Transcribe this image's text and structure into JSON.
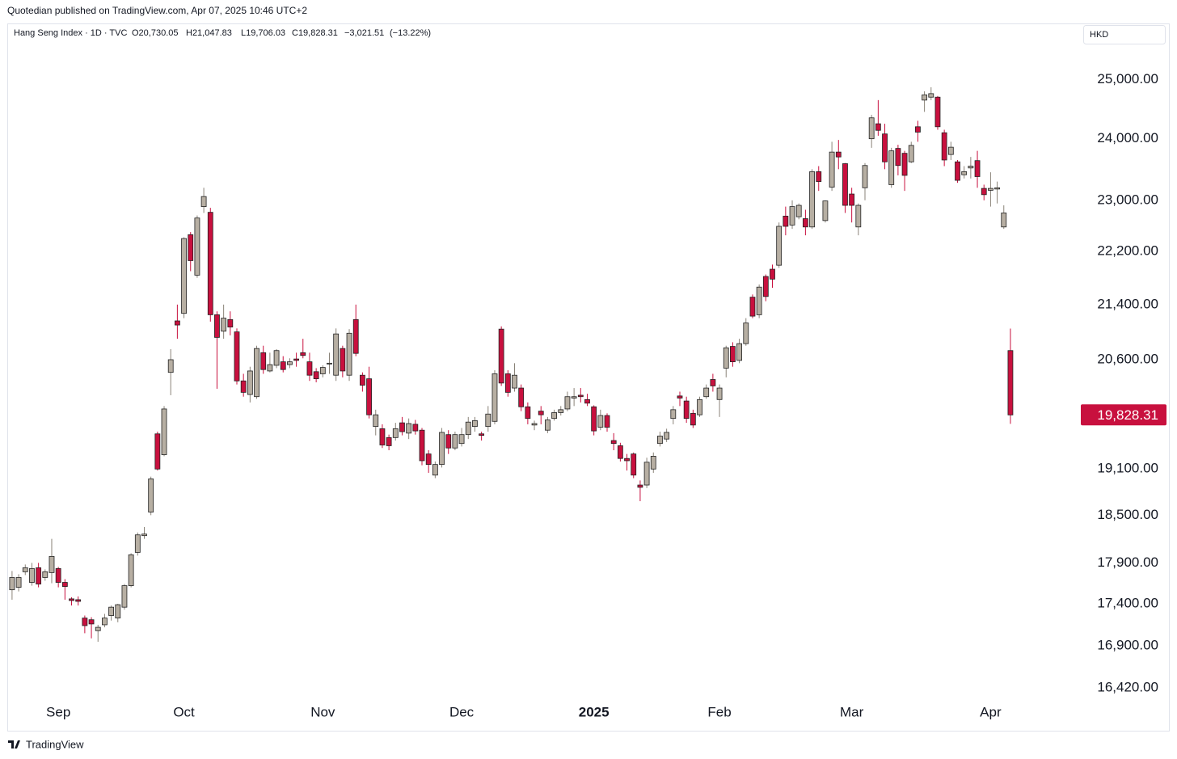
{
  "header": "Quotedian published on TradingView.com, Apr 07, 2025 10:46 UTC+2",
  "footer": "TradingView",
  "chart_data": {
    "type": "candlestick",
    "legend": {
      "symbol": "Hang Seng Index · 1D · TVC",
      "open": "O20,730.05",
      "high": "H21,047.83",
      "low": "L19,706.03",
      "close": "C19,828.31",
      "change": "−3,021.51",
      "change_pct": "(−13.22%)"
    },
    "currency": "HKD",
    "log_scale": true,
    "up_color": "#b7afa3",
    "down_color": "#c8103e",
    "border_color": "#222222",
    "ylim": [
      16290,
      26050
    ],
    "yticks": [
      {
        "value": 16420,
        "label": "16,420.00"
      },
      {
        "value": 16900,
        "label": "16,900.00"
      },
      {
        "value": 17400,
        "label": "17,400.00"
      },
      {
        "value": 17900,
        "label": "17,900.00"
      },
      {
        "value": 18500,
        "label": "18,500.00"
      },
      {
        "value": 19100,
        "label": "19,100.00"
      },
      {
        "value": 20600,
        "label": "20,600.00"
      },
      {
        "value": 21400,
        "label": "21,400.00"
      },
      {
        "value": 22200,
        "label": "22,200.00"
      },
      {
        "value": 23000,
        "label": "23,000.00"
      },
      {
        "value": 24000,
        "label": "24,000.00"
      },
      {
        "value": 25000,
        "label": "25,000.00"
      }
    ],
    "last_price": {
      "value": 19828.31,
      "label": "19,828.31"
    },
    "xlim": [
      -0.6,
      161.4
    ],
    "xticks": [
      {
        "value": 7,
        "label": "Sep"
      },
      {
        "value": 26,
        "label": "Oct"
      },
      {
        "value": 47,
        "label": "Nov"
      },
      {
        "value": 68,
        "label": "Dec"
      },
      {
        "value": 88,
        "label": "2025"
      },
      {
        "value": 107,
        "label": "Feb"
      },
      {
        "value": 127,
        "label": "Mar"
      },
      {
        "value": 148,
        "label": "Apr"
      }
    ],
    "ohlc": [
      [
        17570,
        17800,
        17450,
        17720
      ],
      [
        17600,
        17760,
        17550,
        17720
      ],
      [
        17790,
        17880,
        17750,
        17840
      ],
      [
        17660,
        17900,
        17620,
        17830
      ],
      [
        17840,
        17900,
        17600,
        17640
      ],
      [
        17720,
        17820,
        17680,
        17790
      ],
      [
        17780,
        18200,
        17650,
        17980
      ],
      [
        17830,
        17850,
        17600,
        17660
      ],
      [
        17660,
        17700,
        17450,
        17610
      ],
      [
        17460,
        17480,
        17380,
        17440
      ],
      [
        17450,
        17490,
        17380,
        17430
      ],
      [
        17230,
        17260,
        17050,
        17140
      ],
      [
        17210,
        17240,
        16990,
        17160
      ],
      [
        17080,
        17150,
        16950,
        17120
      ],
      [
        17150,
        17280,
        17120,
        17230
      ],
      [
        17260,
        17380,
        17200,
        17360
      ],
      [
        17230,
        17400,
        17180,
        17390
      ],
      [
        17360,
        17640,
        17330,
        17620
      ],
      [
        17620,
        18020,
        17600,
        18000
      ],
      [
        18030,
        18280,
        17990,
        18250
      ],
      [
        18240,
        18350,
        18200,
        18260
      ],
      [
        18540,
        19000,
        18500,
        18970
      ],
      [
        19570,
        19600,
        19080,
        19100
      ],
      [
        19290,
        19950,
        19270,
        19910
      ],
      [
        20420,
        20750,
        20100,
        20600
      ],
      [
        21160,
        21400,
        20900,
        21100
      ],
      [
        21270,
        22420,
        21200,
        22400
      ],
      [
        22460,
        22500,
        21900,
        22060
      ],
      [
        21840,
        22760,
        21800,
        22720
      ],
      [
        22900,
        23200,
        22800,
        23060
      ],
      [
        22810,
        22880,
        21150,
        21250
      ],
      [
        21250,
        21300,
        20190,
        20920
      ],
      [
        21010,
        21400,
        20900,
        21200
      ],
      [
        21180,
        21300,
        20950,
        21070
      ],
      [
        21000,
        21050,
        20250,
        20300
      ],
      [
        20300,
        20400,
        20080,
        20140
      ],
      [
        20110,
        20500,
        20000,
        20440
      ],
      [
        20080,
        20800,
        20050,
        20760
      ],
      [
        20700,
        20800,
        20400,
        20460
      ],
      [
        20440,
        20700,
        20420,
        20530
      ],
      [
        20520,
        20750,
        20480,
        20730
      ],
      [
        20570,
        20650,
        20420,
        20460
      ],
      [
        20530,
        20620,
        20480,
        20570
      ],
      [
        20610,
        20700,
        20500,
        20590
      ],
      [
        20700,
        20900,
        20620,
        20660
      ],
      [
        20570,
        20700,
        20300,
        20380
      ],
      [
        20430,
        20480,
        20280,
        20330
      ],
      [
        20400,
        20520,
        20350,
        20490
      ],
      [
        20540,
        20700,
        20400,
        20550
      ],
      [
        20380,
        21050,
        20300,
        20970
      ],
      [
        20760,
        20800,
        20350,
        20440
      ],
      [
        20380,
        21040,
        20300,
        20980
      ],
      [
        21180,
        21400,
        20650,
        20690
      ],
      [
        20380,
        20420,
        20150,
        20240
      ],
      [
        20330,
        20500,
        19780,
        19830
      ],
      [
        19670,
        19900,
        19550,
        19830
      ],
      [
        19640,
        19700,
        19380,
        19420
      ],
      [
        19520,
        19560,
        19350,
        19410
      ],
      [
        19520,
        19720,
        19480,
        19640
      ],
      [
        19720,
        19800,
        19550,
        19600
      ],
      [
        19580,
        19780,
        19500,
        19710
      ],
      [
        19700,
        19760,
        19560,
        19610
      ],
      [
        19620,
        19650,
        19150,
        19210
      ],
      [
        19300,
        19350,
        19050,
        19160
      ],
      [
        19020,
        19200,
        18980,
        19160
      ],
      [
        19160,
        19650,
        19120,
        19590
      ],
      [
        19560,
        19620,
        19300,
        19380
      ],
      [
        19380,
        19600,
        19350,
        19560
      ],
      [
        19440,
        19650,
        19400,
        19560
      ],
      [
        19560,
        19800,
        19500,
        19730
      ],
      [
        19670,
        19800,
        19600,
        19750
      ],
      [
        19570,
        19600,
        19480,
        19550
      ],
      [
        19670,
        19950,
        19600,
        19840
      ],
      [
        19740,
        20450,
        19700,
        20400
      ],
      [
        21040,
        21080,
        20230,
        20270
      ],
      [
        20400,
        20450,
        20080,
        20140
      ],
      [
        20200,
        20550,
        20150,
        20380
      ],
      [
        20200,
        20250,
        19880,
        19940
      ],
      [
        19940,
        20000,
        19700,
        19780
      ],
      [
        19690,
        19750,
        19620,
        19710
      ],
      [
        19880,
        19950,
        19700,
        19830
      ],
      [
        19620,
        19800,
        19580,
        19760
      ],
      [
        19780,
        19900,
        19750,
        19860
      ],
      [
        19860,
        19950,
        19820,
        19900
      ],
      [
        19910,
        20150,
        19880,
        20080
      ],
      [
        20060,
        20200,
        19950,
        20080
      ],
      [
        20100,
        20200,
        20000,
        20080
      ],
      [
        20040,
        20120,
        19950,
        19990
      ],
      [
        19940,
        19960,
        19550,
        19610
      ],
      [
        19660,
        19900,
        19620,
        19820
      ],
      [
        19820,
        19850,
        19600,
        19660
      ],
      [
        19480,
        19580,
        19350,
        19440
      ],
      [
        19410,
        19450,
        19200,
        19240
      ],
      [
        19240,
        19300,
        19080,
        19210
      ],
      [
        19300,
        19320,
        18980,
        19020
      ],
      [
        18890,
        18950,
        18680,
        18860
      ],
      [
        18890,
        19250,
        18850,
        19190
      ],
      [
        19100,
        19320,
        19050,
        19270
      ],
      [
        19440,
        19600,
        19400,
        19540
      ],
      [
        19500,
        19640,
        19460,
        19590
      ],
      [
        19780,
        19950,
        19700,
        19900
      ],
      [
        20090,
        20150,
        19950,
        20060
      ],
      [
        20020,
        20080,
        19720,
        19780
      ],
      [
        19850,
        19900,
        19650,
        19690
      ],
      [
        19830,
        20080,
        19800,
        20040
      ],
      [
        20080,
        20250,
        20050,
        20200
      ],
      [
        20320,
        20400,
        20150,
        20230
      ],
      [
        20040,
        20250,
        19800,
        20200
      ],
      [
        20480,
        20800,
        20350,
        20770
      ],
      [
        20790,
        20850,
        20500,
        20570
      ],
      [
        20590,
        20900,
        20550,
        20830
      ],
      [
        20830,
        21200,
        20800,
        21130
      ],
      [
        21510,
        21550,
        21200,
        21230
      ],
      [
        21250,
        21700,
        21200,
        21660
      ],
      [
        21820,
        21850,
        21450,
        21520
      ],
      [
        21930,
        22000,
        21650,
        21780
      ],
      [
        21990,
        22650,
        21950,
        22590
      ],
      [
        22750,
        22900,
        22450,
        22590
      ],
      [
        22610,
        23000,
        22550,
        22900
      ],
      [
        22740,
        22950,
        22700,
        22920
      ],
      [
        22710,
        22850,
        22450,
        22580
      ],
      [
        22580,
        23500,
        22550,
        23460
      ],
      [
        23460,
        23550,
        23150,
        23300
      ],
      [
        22680,
        23000,
        22650,
        22990
      ],
      [
        23210,
        23950,
        23150,
        23780
      ],
      [
        23780,
        23980,
        23500,
        23700
      ],
      [
        23590,
        23600,
        22800,
        22920
      ],
      [
        23100,
        23200,
        22650,
        22920
      ],
      [
        22580,
        22950,
        22450,
        22920
      ],
      [
        23200,
        23600,
        23000,
        23560
      ],
      [
        24000,
        24400,
        23850,
        24350
      ],
      [
        24250,
        24650,
        24050,
        24140
      ],
      [
        24080,
        24250,
        23500,
        23620
      ],
      [
        23250,
        23850,
        23200,
        23800
      ],
      [
        23840,
        23900,
        23400,
        23560
      ],
      [
        23760,
        23800,
        23150,
        23400
      ],
      [
        23620,
        23950,
        23600,
        23890
      ],
      [
        24200,
        24300,
        23950,
        24110
      ],
      [
        24650,
        24800,
        24450,
        24740
      ],
      [
        24700,
        24870,
        24650,
        24760
      ],
      [
        24700,
        24720,
        24150,
        24200
      ],
      [
        24100,
        24150,
        23550,
        23650
      ],
      [
        23740,
        23950,
        23650,
        23860
      ],
      [
        23620,
        23650,
        23280,
        23320
      ],
      [
        23410,
        23550,
        23350,
        23460
      ],
      [
        23520,
        23700,
        23350,
        23550
      ],
      [
        23640,
        23800,
        23200,
        23380
      ],
      [
        23190,
        23250,
        23000,
        23090
      ],
      [
        23160,
        23450,
        22900,
        23190
      ],
      [
        23180,
        23300,
        22950,
        23200
      ],
      [
        22580,
        22920,
        22550,
        22800
      ],
      [
        20730.05,
        21047.83,
        19706.03,
        19828.31
      ]
    ]
  }
}
